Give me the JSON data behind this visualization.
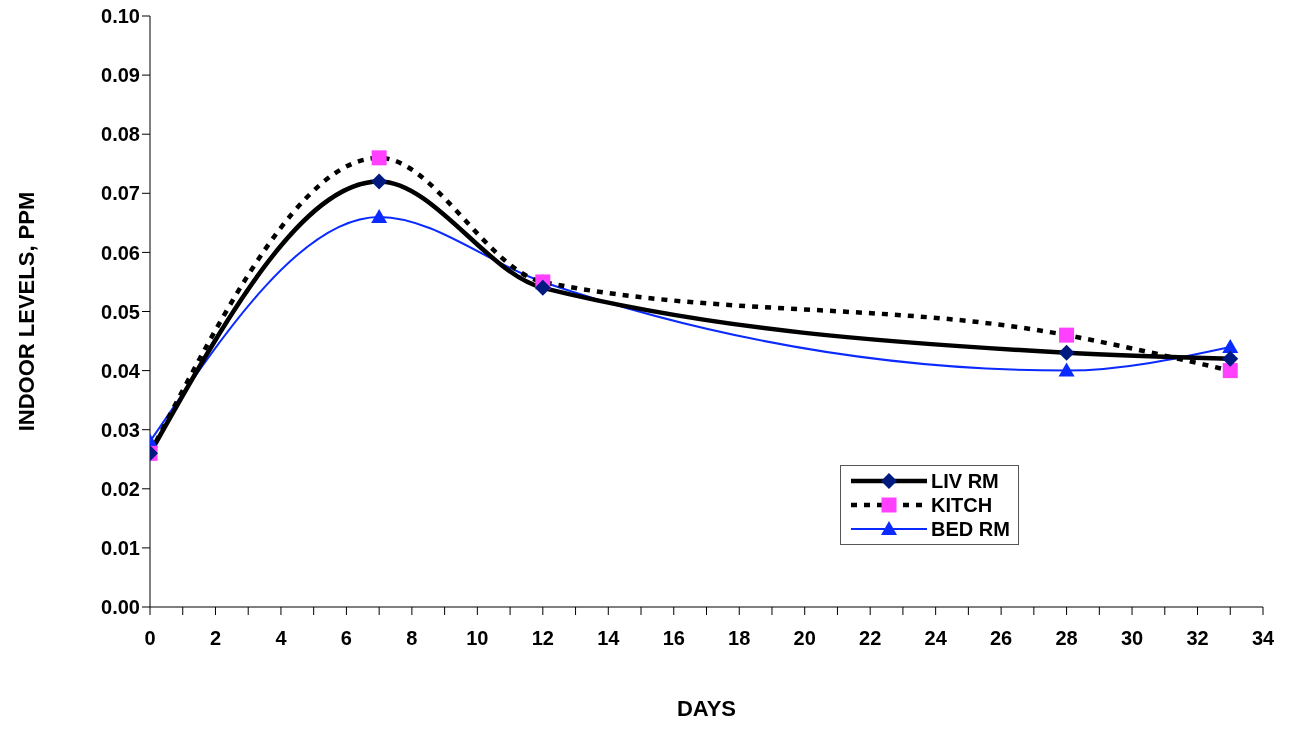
{
  "chart_data": {
    "type": "line",
    "xlabel": "DAYS",
    "ylabel": "INDOOR LEVELS, PPM",
    "x": [
      0,
      7,
      12,
      28,
      33
    ],
    "series": [
      {
        "name": "LIV RM",
        "color": "#000000",
        "marker": "diamond",
        "colors": [
          "#001a80",
          "#001a80",
          "#001a80",
          "#001a80",
          "#001a80"
        ],
        "line_style": "solid",
        "values": [
          0.026,
          0.072,
          0.054,
          0.043,
          0.042
        ]
      },
      {
        "name": "KITCH",
        "color": "#000000",
        "marker": "square",
        "colors": [
          "#ff40ff",
          "#ff40ff",
          "#ff40ff",
          "#ff40ff",
          "#ff40ff"
        ],
        "line_style": "dotted",
        "values": [
          0.026,
          0.076,
          0.055,
          0.046,
          0.04
        ]
      },
      {
        "name": "BED RM",
        "color": "#0a2aff",
        "marker": "triangle",
        "colors": [
          "#0a2aff",
          "#0a2aff",
          "#0a2aff",
          "#0a2aff",
          "#0a2aff"
        ],
        "line_style": "solid",
        "values": [
          0.028,
          0.066,
          0.055,
          0.04,
          0.044
        ]
      }
    ],
    "xlim": [
      0,
      34
    ],
    "xticks": [
      0,
      {
        "value": 1,
        "label": null
      },
      2,
      {
        "value": 3,
        "label": null
      },
      4,
      {
        "value": 5,
        "label": null
      },
      6,
      {
        "value": 7,
        "label": null
      },
      8,
      {
        "value": 9,
        "label": null
      },
      10,
      {
        "value": 11,
        "label": null
      },
      12,
      {
        "value": 13,
        "label": null
      },
      14,
      {
        "value": 15,
        "label": null
      },
      16,
      {
        "value": 17,
        "label": null
      },
      18,
      {
        "value": 19,
        "label": null
      },
      20,
      {
        "value": 21,
        "label": null
      },
      22,
      {
        "value": 23,
        "label": null
      },
      24,
      {
        "value": 25,
        "label": null
      },
      26,
      {
        "value": 27,
        "label": null
      },
      28,
      {
        "value": 29,
        "label": null
      },
      30,
      {
        "value": 31,
        "label": null
      },
      32,
      {
        "value": 33,
        "label": null
      },
      34
    ],
    "ylim": [
      0,
      0.1
    ],
    "yticks": [
      {
        "value": 0,
        "label": "0.00"
      },
      {
        "value": 0.01,
        "label": "0.01"
      },
      {
        "value": 0.02,
        "label": "0.02"
      },
      {
        "value": 0.03,
        "label": "0.03"
      },
      {
        "value": 0.04,
        "label": "0.04"
      },
      {
        "value": 0.05,
        "label": "0.05"
      },
      {
        "value": 0.06,
        "label": "0.06"
      },
      {
        "value": 0.07,
        "label": "0.07"
      },
      {
        "value": 0.08,
        "label": "0.08"
      },
      {
        "value": 0.09,
        "label": "0.09"
      },
      {
        "value": 0.1,
        "label": "0.10"
      }
    ],
    "grid": false,
    "legend": "bottom right"
  }
}
